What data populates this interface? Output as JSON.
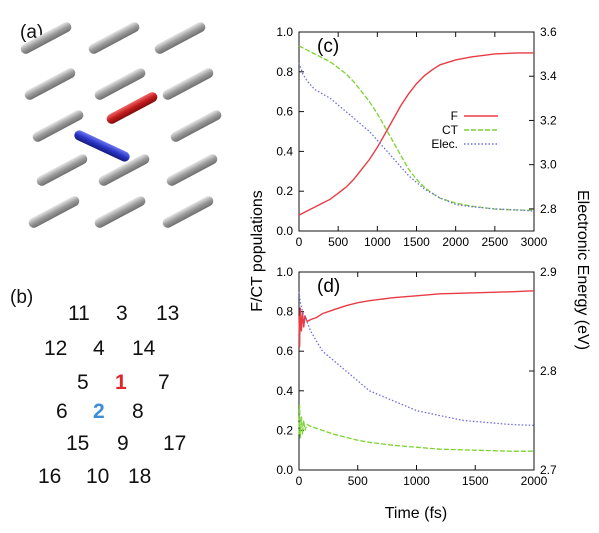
{
  "panel_a": {
    "label": "(a)",
    "rod_colors": {
      "default": "#a9a9a9",
      "molecule_1": "#cc1f1f",
      "molecule_2": "#2a35c8"
    }
  },
  "panel_b": {
    "label": "(b)",
    "numbers": [
      {
        "text": "11",
        "color": "#111111"
      },
      {
        "text": "3",
        "color": "#111111"
      },
      {
        "text": "13",
        "color": "#111111"
      },
      {
        "text": "12",
        "color": "#111111"
      },
      {
        "text": "4",
        "color": "#111111"
      },
      {
        "text": "14",
        "color": "#111111"
      },
      {
        "text": "5",
        "color": "#111111"
      },
      {
        "text": "1",
        "color": "#e0262b"
      },
      {
        "text": "7",
        "color": "#111111"
      },
      {
        "text": "6",
        "color": "#111111"
      },
      {
        "text": "2",
        "color": "#3a8ed8"
      },
      {
        "text": "8",
        "color": "#111111"
      },
      {
        "text": "15",
        "color": "#111111"
      },
      {
        "text": "9",
        "color": "#111111"
      },
      {
        "text": "17",
        "color": "#111111"
      },
      {
        "text": "16",
        "color": "#111111"
      },
      {
        "text": "10",
        "color": "#111111"
      },
      {
        "text": "18",
        "color": "#111111"
      }
    ]
  },
  "shared_labels": {
    "ylabel_left": "F/CT populations",
    "ylabel_right": "Electronic Energy (eV)",
    "xlabel": "Time (fs)"
  },
  "chart_data": [
    {
      "panel": "(c)",
      "type": "line",
      "xlim": [
        0,
        3000
      ],
      "xticks": [
        "0",
        "500",
        "1000",
        "1500",
        "2000",
        "2500",
        "3000"
      ],
      "ylim_left": [
        0,
        1.0
      ],
      "yticks_left": [
        "0.0",
        "0.2",
        "0.4",
        "0.6",
        "0.8",
        "1.0"
      ],
      "ylim_right": [
        2.7,
        3.6
      ],
      "yticks_right": [
        "2.8",
        "3.0",
        "3.2",
        "3.4",
        "3.6"
      ],
      "legend_position": "center-right",
      "series": [
        {
          "name": "F",
          "axis": "left",
          "style": "solid",
          "color": "#e83c45",
          "x": [
            0,
            100,
            200,
            300,
            400,
            500,
            600,
            700,
            800,
            900,
            1000,
            1100,
            1200,
            1300,
            1400,
            1500,
            1600,
            1700,
            1800,
            2000,
            2200,
            2500,
            2800,
            3000
          ],
          "y": [
            0.08,
            0.1,
            0.12,
            0.14,
            0.16,
            0.19,
            0.22,
            0.26,
            0.31,
            0.36,
            0.42,
            0.49,
            0.56,
            0.63,
            0.69,
            0.74,
            0.78,
            0.81,
            0.835,
            0.86,
            0.875,
            0.89,
            0.895,
            0.895
          ]
        },
        {
          "name": "CT",
          "axis": "left",
          "style": "dashed",
          "color": "#7bd330",
          "x": [
            0,
            100,
            200,
            300,
            400,
            500,
            600,
            700,
            800,
            900,
            1000,
            1100,
            1200,
            1300,
            1400,
            1500,
            1600,
            1700,
            1800,
            2000,
            2200,
            2500,
            2800,
            3000
          ],
          "y": [
            0.93,
            0.91,
            0.89,
            0.87,
            0.85,
            0.82,
            0.79,
            0.75,
            0.7,
            0.65,
            0.59,
            0.52,
            0.45,
            0.38,
            0.31,
            0.26,
            0.22,
            0.19,
            0.165,
            0.14,
            0.125,
            0.11,
            0.105,
            0.105
          ]
        },
        {
          "name": "Elec.",
          "axis": "right",
          "style": "dotted",
          "color": "#6d6de0",
          "x": [
            0,
            50,
            100,
            200,
            300,
            400,
            500,
            600,
            700,
            800,
            900,
            1000,
            1100,
            1200,
            1300,
            1400,
            1500,
            1600,
            1800,
            2000,
            2200,
            2500,
            2800,
            3000
          ],
          "y": [
            3.46,
            3.41,
            3.38,
            3.34,
            3.32,
            3.3,
            3.27,
            3.24,
            3.21,
            3.18,
            3.15,
            3.11,
            3.07,
            3.03,
            2.99,
            2.95,
            2.92,
            2.89,
            2.85,
            2.82,
            2.81,
            2.8,
            2.795,
            2.79
          ]
        }
      ]
    },
    {
      "panel": "(d)",
      "type": "line",
      "xlim": [
        0,
        2000
      ],
      "xticks": [
        "0",
        "500",
        "1000",
        "1500",
        "2000"
      ],
      "ylim_left": [
        0,
        1.0
      ],
      "yticks_left": [
        "0.0",
        "0.2",
        "0.4",
        "0.6",
        "0.8",
        "1.0"
      ],
      "ylim_right": [
        2.7,
        2.9
      ],
      "yticks_right": [
        "2.7",
        "2.8",
        "2.9"
      ],
      "series": [
        {
          "name": "F",
          "axis": "left",
          "style": "solid",
          "color": "#e83c45",
          "x": [
            0,
            5,
            10,
            20,
            30,
            40,
            50,
            70,
            100,
            150,
            200,
            300,
            400,
            500,
            600,
            800,
            1000,
            1200,
            1500,
            1800,
            2000
          ],
          "y": [
            0.78,
            0.62,
            0.82,
            0.7,
            0.8,
            0.72,
            0.78,
            0.75,
            0.76,
            0.77,
            0.79,
            0.81,
            0.83,
            0.845,
            0.855,
            0.87,
            0.88,
            0.89,
            0.895,
            0.9,
            0.905
          ]
        },
        {
          "name": "CT",
          "axis": "left",
          "style": "dashed",
          "color": "#7bd330",
          "x": [
            0,
            5,
            10,
            20,
            30,
            40,
            50,
            70,
            100,
            150,
            200,
            300,
            400,
            500,
            600,
            800,
            1000,
            1200,
            1500,
            1800,
            2000
          ],
          "y": [
            0.18,
            0.33,
            0.16,
            0.27,
            0.18,
            0.25,
            0.2,
            0.23,
            0.22,
            0.21,
            0.2,
            0.18,
            0.165,
            0.15,
            0.14,
            0.125,
            0.115,
            0.105,
            0.1,
            0.095,
            0.095
          ]
        },
        {
          "name": "Elec.",
          "axis": "right",
          "style": "dotted",
          "color": "#6d6de0",
          "x": [
            0,
            10,
            30,
            50,
            100,
            150,
            200,
            300,
            400,
            500,
            600,
            700,
            800,
            900,
            1000,
            1200,
            1400,
            1600,
            1800,
            2000
          ],
          "y": [
            2.88,
            2.87,
            2.86,
            2.855,
            2.84,
            2.83,
            2.82,
            2.81,
            2.8,
            2.79,
            2.78,
            2.775,
            2.77,
            2.765,
            2.76,
            2.755,
            2.75,
            2.748,
            2.746,
            2.745
          ]
        }
      ]
    }
  ]
}
